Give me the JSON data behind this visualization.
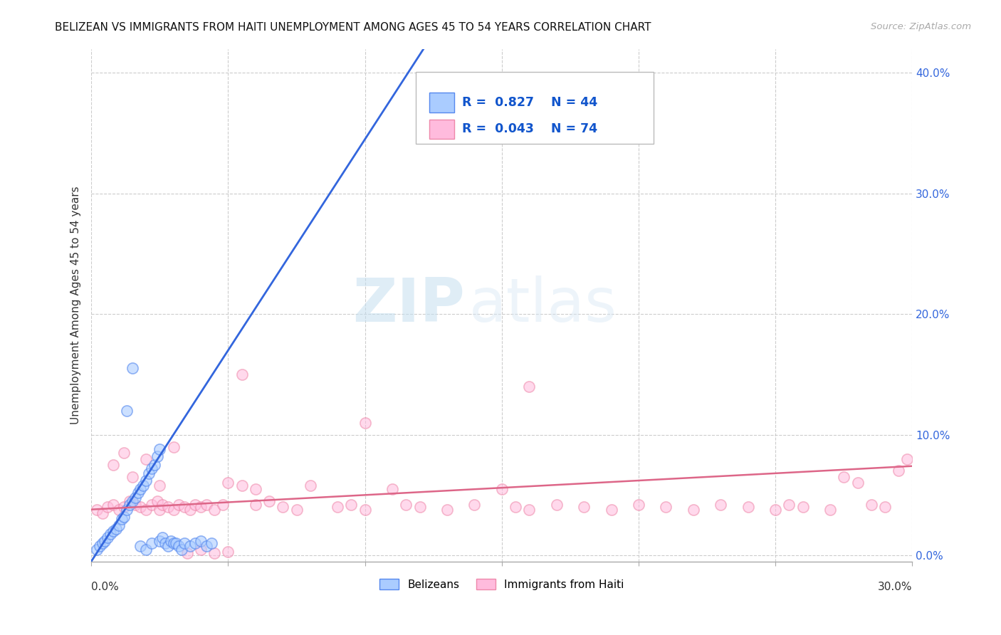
{
  "title": "BELIZEAN VS IMMIGRANTS FROM HAITI UNEMPLOYMENT AMONG AGES 45 TO 54 YEARS CORRELATION CHART",
  "source": "Source: ZipAtlas.com",
  "ylabel": "Unemployment Among Ages 45 to 54 years",
  "xlim": [
    0.0,
    0.3
  ],
  "ylim": [
    -0.005,
    0.42
  ],
  "ytick_values": [
    0.0,
    0.1,
    0.2,
    0.3,
    0.4
  ],
  "xtick_values": [
    0.0,
    0.05,
    0.1,
    0.15,
    0.2,
    0.25,
    0.3
  ],
  "belizean_R": 0.827,
  "belizean_N": 44,
  "haiti_R": 0.043,
  "haiti_N": 74,
  "belizean_color": "#aaccff",
  "belizean_edge_color": "#5588ee",
  "belizean_line_color": "#3366dd",
  "haiti_color": "#ffbbdd",
  "haiti_edge_color": "#ee88aa",
  "haiti_line_color": "#dd6688",
  "legend_label_1": "Belizeans",
  "legend_label_2": "Immigrants from Haiti",
  "watermark_zip": "ZIP",
  "watermark_atlas": "atlas",
  "bel_x": [
    0.002,
    0.003,
    0.004,
    0.005,
    0.006,
    0.007,
    0.008,
    0.009,
    0.01,
    0.011,
    0.012,
    0.013,
    0.014,
    0.015,
    0.016,
    0.017,
    0.018,
    0.019,
    0.02,
    0.021,
    0.022,
    0.023,
    0.013,
    0.015,
    0.018,
    0.02,
    0.022,
    0.024,
    0.025,
    0.025,
    0.026,
    0.027,
    0.028,
    0.029,
    0.03,
    0.031,
    0.032,
    0.033,
    0.034,
    0.036,
    0.038,
    0.04,
    0.042,
    0.044
  ],
  "bel_y": [
    0.005,
    0.008,
    0.01,
    0.012,
    0.015,
    0.018,
    0.02,
    0.022,
    0.025,
    0.03,
    0.032,
    0.038,
    0.042,
    0.045,
    0.048,
    0.052,
    0.055,
    0.058,
    0.062,
    0.068,
    0.072,
    0.075,
    0.12,
    0.155,
    0.008,
    0.005,
    0.01,
    0.082,
    0.088,
    0.012,
    0.015,
    0.01,
    0.008,
    0.012,
    0.01,
    0.01,
    0.008,
    0.005,
    0.01,
    0.008,
    0.01,
    0.012,
    0.008,
    0.01
  ],
  "hai_x": [
    0.002,
    0.004,
    0.006,
    0.008,
    0.01,
    0.012,
    0.014,
    0.016,
    0.018,
    0.02,
    0.022,
    0.024,
    0.025,
    0.026,
    0.028,
    0.03,
    0.032,
    0.034,
    0.036,
    0.038,
    0.04,
    0.042,
    0.045,
    0.048,
    0.05,
    0.055,
    0.06,
    0.065,
    0.07,
    0.075,
    0.08,
    0.09,
    0.095,
    0.1,
    0.11,
    0.115,
    0.12,
    0.13,
    0.14,
    0.15,
    0.155,
    0.16,
    0.17,
    0.18,
    0.19,
    0.2,
    0.21,
    0.22,
    0.23,
    0.24,
    0.25,
    0.255,
    0.26,
    0.27,
    0.275,
    0.28,
    0.285,
    0.29,
    0.008,
    0.012,
    0.015,
    0.02,
    0.025,
    0.03,
    0.1,
    0.16,
    0.035,
    0.04,
    0.045,
    0.05,
    0.055,
    0.06,
    0.295,
    0.298
  ],
  "hai_y": [
    0.038,
    0.035,
    0.04,
    0.042,
    0.038,
    0.04,
    0.045,
    0.042,
    0.04,
    0.038,
    0.042,
    0.045,
    0.038,
    0.042,
    0.04,
    0.038,
    0.042,
    0.04,
    0.038,
    0.042,
    0.04,
    0.042,
    0.038,
    0.042,
    0.06,
    0.058,
    0.042,
    0.045,
    0.04,
    0.038,
    0.058,
    0.04,
    0.042,
    0.038,
    0.055,
    0.042,
    0.04,
    0.038,
    0.042,
    0.055,
    0.04,
    0.038,
    0.042,
    0.04,
    0.038,
    0.042,
    0.04,
    0.038,
    0.042,
    0.04,
    0.038,
    0.042,
    0.04,
    0.038,
    0.065,
    0.06,
    0.042,
    0.04,
    0.075,
    0.085,
    0.065,
    0.08,
    0.058,
    0.09,
    0.11,
    0.14,
    0.002,
    0.005,
    0.002,
    0.003,
    0.15,
    0.055,
    0.07,
    0.08
  ]
}
